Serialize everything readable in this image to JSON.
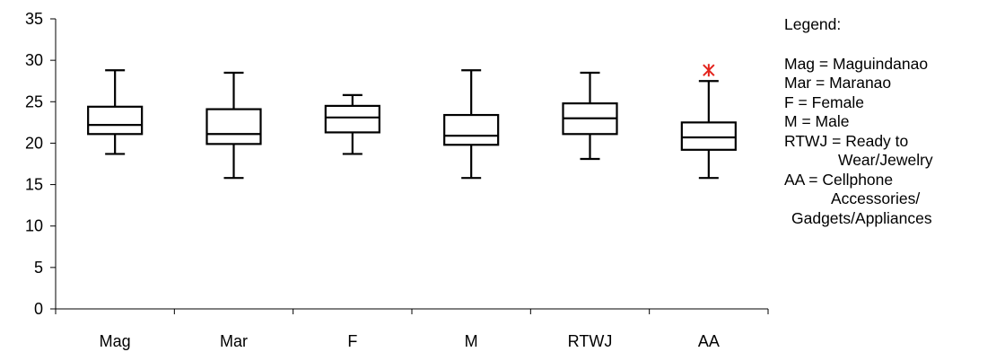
{
  "chart_data": {
    "type": "box",
    "ylim": [
      0,
      35
    ],
    "y_ticks": [
      "0",
      "5",
      "10",
      "15",
      "20",
      "25",
      "30",
      "35"
    ],
    "categories": [
      "Mag",
      "Mar",
      "F",
      "M",
      "RTWJ",
      "AA"
    ],
    "boxes": [
      {
        "category": "Mag",
        "min": 18.7,
        "q1": 21.1,
        "median": 22.2,
        "q3": 24.4,
        "max": 28.8,
        "outliers": []
      },
      {
        "category": "Mar",
        "min": 15.8,
        "q1": 19.9,
        "median": 21.1,
        "q3": 24.1,
        "max": 28.5,
        "outliers": []
      },
      {
        "category": "F",
        "min": 18.7,
        "q1": 21.3,
        "median": 23.1,
        "q3": 24.5,
        "max": 25.8,
        "outliers": []
      },
      {
        "category": "M",
        "min": 15.8,
        "q1": 19.8,
        "median": 20.9,
        "q3": 23.4,
        "max": 28.8,
        "outliers": []
      },
      {
        "category": "RTWJ",
        "min": 18.1,
        "q1": 21.1,
        "median": 23.0,
        "q3": 24.8,
        "max": 28.5,
        "outliers": []
      },
      {
        "category": "AA",
        "min": 15.8,
        "q1": 19.2,
        "median": 20.7,
        "q3": 22.5,
        "max": 27.5,
        "outliers": [
          28.8
        ]
      }
    ],
    "outlier_color": "#e3231c",
    "grid": false
  },
  "legend": {
    "title": "Legend:",
    "lines": [
      "Mag = Maguindanao",
      "Mar = Maranao",
      "F = Female",
      "M = Male",
      "RTWJ = Ready to",
      "Wear/Jewelry",
      "AA = Cellphone",
      "Accessories/",
      "Gadgets/Appliances"
    ]
  }
}
